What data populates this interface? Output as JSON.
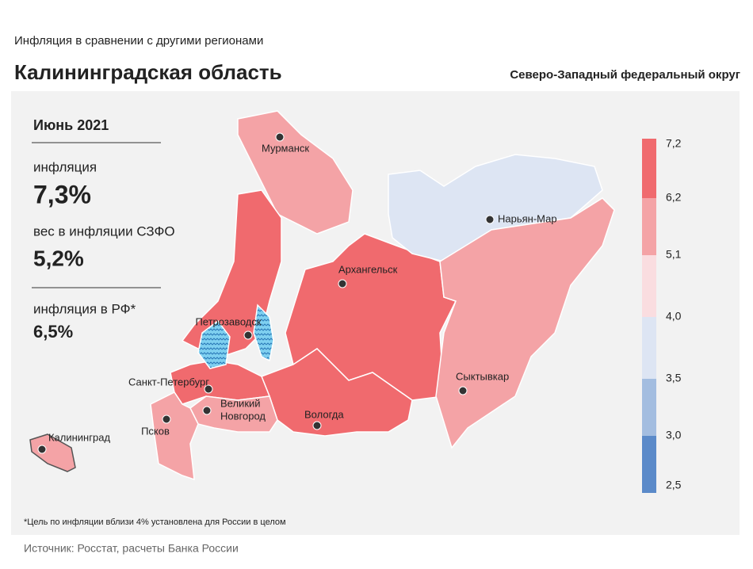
{
  "header": {
    "subtitle": "Инфляция в сравнении с другими регионами",
    "title": "Калининградская область",
    "district": "Северо-Западный федеральный округ"
  },
  "panel": {
    "period": "Июнь 2021",
    "inflation_label": "инфляция",
    "inflation_value": "7,3%",
    "weight_label": "вес в инфляции СЗФО",
    "weight_value": "5,2%",
    "rf_label": "инфляция в РФ*",
    "rf_value": "6,5%"
  },
  "legend": {
    "labels": [
      "7,2",
      "6,2",
      "5,1",
      "4,0",
      "3,5",
      "3,0",
      "2,5"
    ],
    "colors": [
      "#f06a6e",
      "#f4a3a6",
      "#fadde0",
      "#dde5f3",
      "#a3bde0",
      "#5b8ac9"
    ]
  },
  "cities": [
    {
      "lines": [
        "Мурманск"
      ]
    },
    {
      "lines": [
        "Нарьян-Мар"
      ]
    },
    {
      "lines": [
        "Архангельск"
      ]
    },
    {
      "lines": [
        "Петрозаводск"
      ]
    },
    {
      "lines": [
        "Сыктывкар"
      ]
    },
    {
      "lines": [
        "Санкт-Петербург"
      ]
    },
    {
      "lines": [
        "Великий",
        "Новгород"
      ]
    },
    {
      "lines": [
        "Вологда"
      ]
    },
    {
      "lines": [
        "Псков"
      ]
    },
    {
      "lines": [
        "Калининград"
      ]
    }
  ],
  "footnote": "*Цель по инфляции вблизи 4% установлена для России в целом",
  "source": "Источник: Росстат, расчеты Банка России"
}
